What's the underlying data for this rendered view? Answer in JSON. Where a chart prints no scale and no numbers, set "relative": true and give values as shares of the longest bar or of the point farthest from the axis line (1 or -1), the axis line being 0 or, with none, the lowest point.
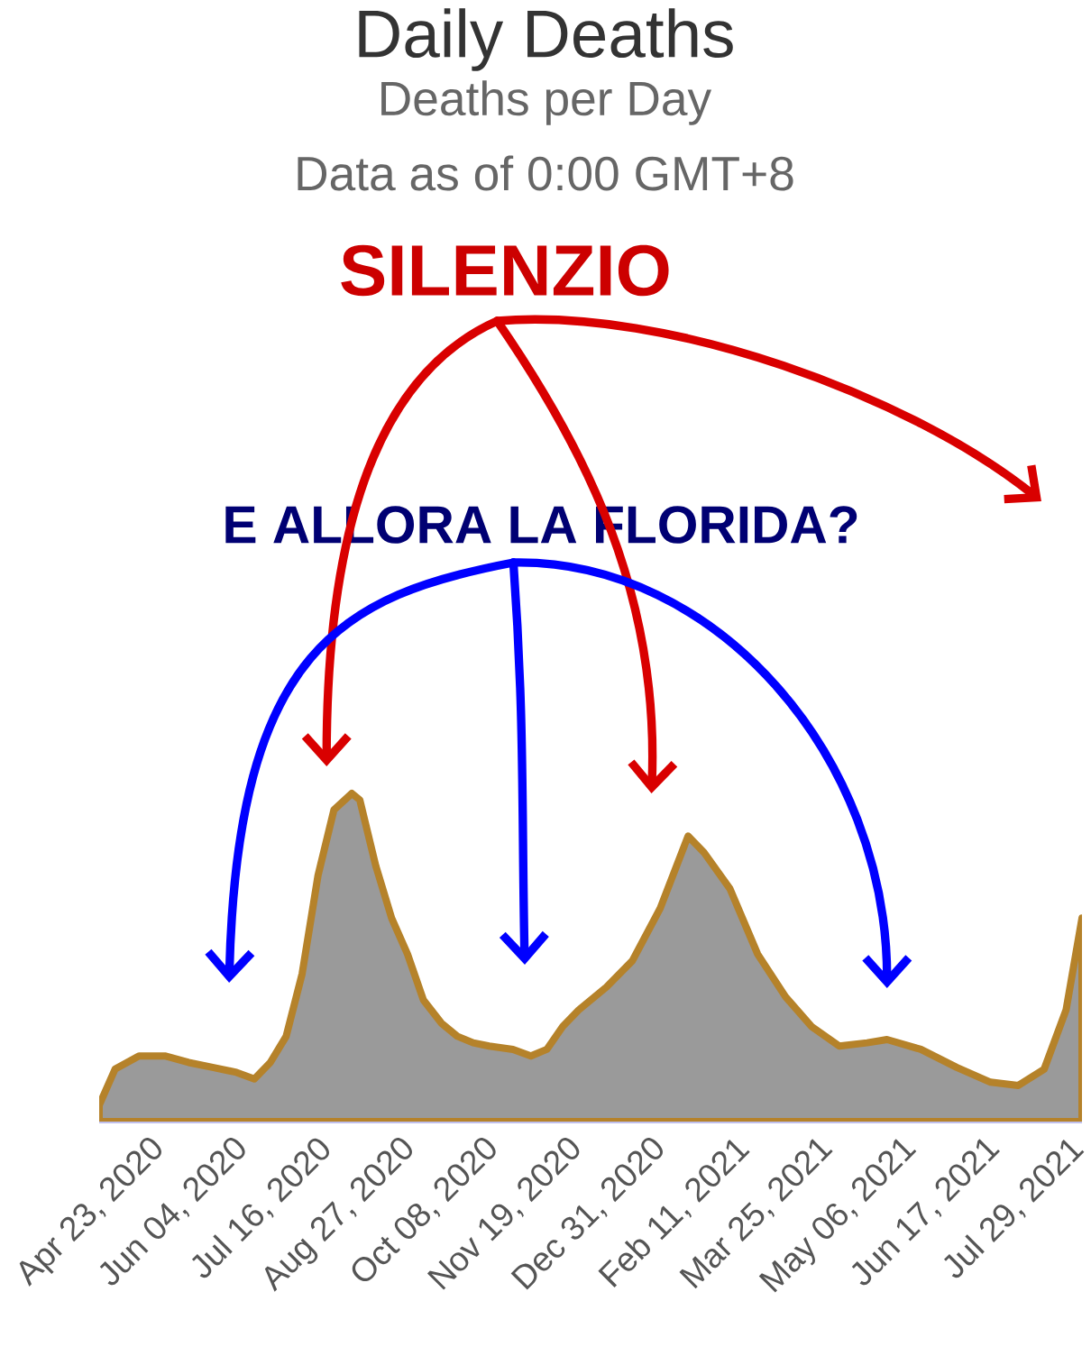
{
  "chart_data": {
    "type": "area",
    "title": "Daily Deaths",
    "subtitle": "Deaths per Day",
    "relative": true,
    "annotations": [
      "Data as of 0:00 GMT+8",
      "SILENZIO",
      "E ALLORA LA FLORIDA?"
    ],
    "xlim": [
      "2020-03-29",
      "2021-08-05"
    ],
    "xticks": [
      {
        "value": "2020-04-23",
        "label": "Apr 23, 2020"
      },
      {
        "value": "2020-06-04",
        "label": "Jun 04, 2020"
      },
      {
        "value": "2020-07-16",
        "label": "Jul 16, 2020"
      },
      {
        "value": "2020-08-27",
        "label": "Aug 27, 2020"
      },
      {
        "value": "2020-10-08",
        "label": "Oct 08, 2020"
      },
      {
        "value": "2020-11-19",
        "label": "Nov 19, 2020"
      },
      {
        "value": "2020-12-31",
        "label": "Dec 31, 2020"
      },
      {
        "value": "2021-02-11",
        "label": "Feb 11, 2021"
      },
      {
        "value": "2021-03-25",
        "label": "Mar 25, 2021"
      },
      {
        "value": "2021-05-06",
        "label": "May 06, 2021"
      },
      {
        "value": "2021-06-17",
        "label": "Jun 17, 2021"
      },
      {
        "value": "2021-07-29",
        "label": "Jul 29, 2021"
      }
    ],
    "x": [
      "2020-03-29",
      "2020-04-06",
      "2020-04-18",
      "2020-05-01",
      "2020-05-13",
      "2020-05-25",
      "2020-06-06",
      "2020-06-15",
      "2020-06-23",
      "2020-07-01",
      "2020-07-09",
      "2020-07-17",
      "2020-07-25",
      "2020-08-03",
      "2020-08-07",
      "2020-08-15",
      "2020-08-23",
      "2020-08-31",
      "2020-09-08",
      "2020-09-17",
      "2020-09-25",
      "2020-10-03",
      "2020-10-11",
      "2020-10-23",
      "2020-11-01",
      "2020-11-09",
      "2020-11-17",
      "2020-11-25",
      "2020-12-09",
      "2020-12-22",
      "2021-01-05",
      "2021-01-19",
      "2021-01-27",
      "2021-02-09",
      "2021-02-23",
      "2021-03-09",
      "2021-03-22",
      "2021-04-05",
      "2021-04-19",
      "2021-04-29",
      "2021-05-16",
      "2021-06-03",
      "2021-06-20",
      "2021-07-04",
      "2021-07-17",
      "2021-07-28",
      "2021-08-05"
    ],
    "series": [
      {
        "color": "#9a9a9a",
        "values": [
          0.05,
          0.16,
          0.2,
          0.2,
          0.18,
          0.165,
          0.15,
          0.13,
          0.18,
          0.26,
          0.45,
          0.75,
          0.95,
          1,
          0.98,
          0.78,
          0.62,
          0.51,
          0.37,
          0.3,
          0.26,
          0.24,
          0.23,
          0.22,
          0.2,
          0.22,
          0.29,
          0.34,
          0.41,
          0.49,
          0.65,
          0.87,
          0.82,
          0.71,
          0.51,
          0.38,
          0.29,
          0.23,
          0.24,
          0.25,
          0.22,
          0.165,
          0.12,
          0.11,
          0.16,
          0.34,
          0.62
        ]
      }
    ]
  }
}
